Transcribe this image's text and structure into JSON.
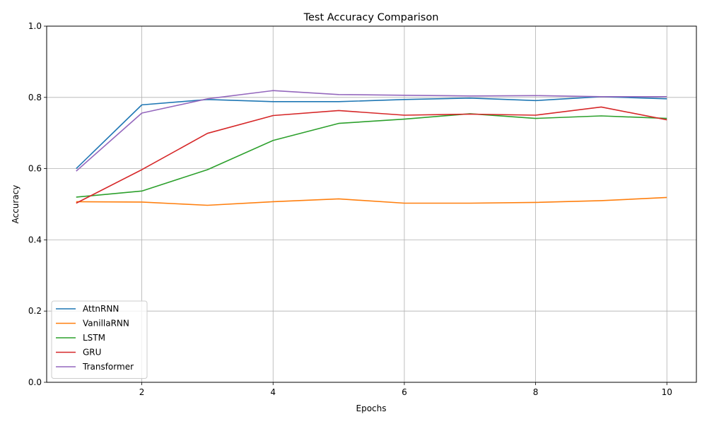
{
  "chart_data": {
    "type": "line",
    "title": "Test Accuracy Comparison",
    "xlabel": "Epochs",
    "ylabel": "Accuracy",
    "x": [
      1,
      2,
      3,
      4,
      5,
      6,
      7,
      8,
      9,
      10
    ],
    "xlim": [
      0.55,
      10.45
    ],
    "ylim": [
      0.0,
      1.0
    ],
    "xticks": [
      2,
      4,
      6,
      8,
      10
    ],
    "yticks": [
      0.0,
      0.2,
      0.4,
      0.6,
      0.8,
      1.0
    ],
    "xtick_labels": [
      "2",
      "4",
      "6",
      "8",
      "10"
    ],
    "ytick_labels": [
      "0.0",
      "0.2",
      "0.4",
      "0.6",
      "0.8",
      "1.0"
    ],
    "grid": true,
    "legend_position": "lower-left",
    "series": [
      {
        "name": "AttnRNN",
        "color": "#1f77b4",
        "values": [
          0.6,
          0.779,
          0.794,
          0.788,
          0.788,
          0.794,
          0.798,
          0.791,
          0.802,
          0.796
        ]
      },
      {
        "name": "VanillaRNN",
        "color": "#ff7f0e",
        "values": [
          0.507,
          0.506,
          0.497,
          0.507,
          0.515,
          0.503,
          0.503,
          0.505,
          0.51,
          0.519
        ]
      },
      {
        "name": "LSTM",
        "color": "#2ca02c",
        "values": [
          0.52,
          0.537,
          0.597,
          0.679,
          0.727,
          0.739,
          0.754,
          0.741,
          0.748,
          0.741
        ]
      },
      {
        "name": "GRU",
        "color": "#d62728",
        "values": [
          0.503,
          0.597,
          0.699,
          0.749,
          0.763,
          0.75,
          0.753,
          0.75,
          0.773,
          0.737
        ]
      },
      {
        "name": "Transformer",
        "color": "#9467bd",
        "values": [
          0.593,
          0.756,
          0.796,
          0.819,
          0.808,
          0.806,
          0.804,
          0.805,
          0.802,
          0.802
        ]
      }
    ]
  }
}
